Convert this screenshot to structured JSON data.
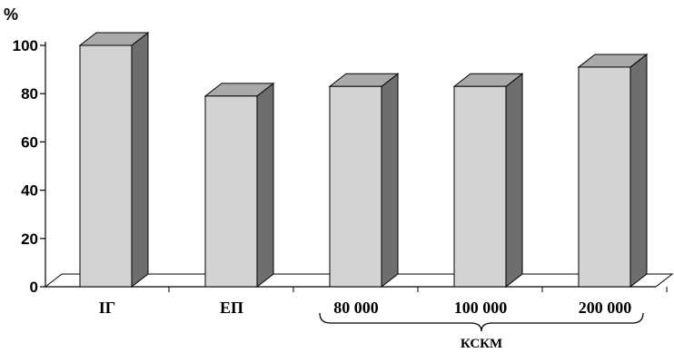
{
  "chart_data": {
    "type": "bar",
    "unit_label": "%",
    "categories": [
      "ІГ",
      "ЕП",
      "80 000",
      "100 000",
      "200 000"
    ],
    "values": [
      100,
      79,
      83,
      83,
      91
    ],
    "ylim": [
      0,
      100
    ],
    "yticks": [
      "0",
      "20",
      "40",
      "60",
      "80",
      "100"
    ],
    "group_label": "КСКМ",
    "grid": false,
    "colors": {
      "front": "#d3d3d3",
      "side": "#6e6e6e",
      "top": "#a9a9a9",
      "floor": "#ffffff"
    }
  }
}
